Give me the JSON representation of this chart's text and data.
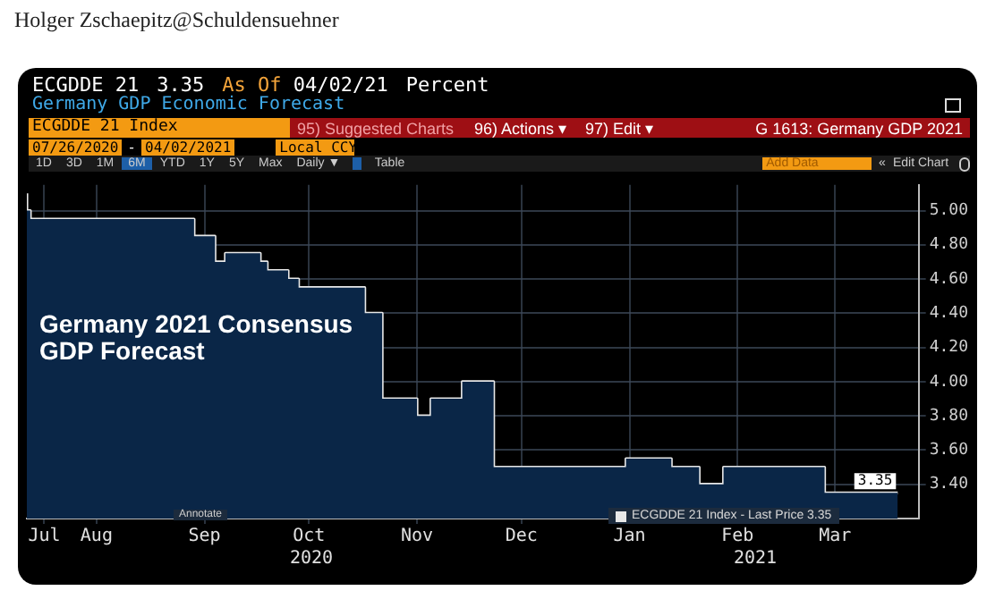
{
  "chart_data": {
    "type": "step",
    "title": "Germany 2021 Consensus GDP Forecast",
    "annotations": [
      "Holger Zschaepitz@Schuldensuehner",
      "ECGDDE 21",
      "3.35",
      "As Of",
      "04/02/21",
      "Percent",
      "Germany GDP Economic Forecast",
      "ECGDDE 21 Index",
      "95) Suggested Charts",
      "96) Actions ▾",
      "97) Edit ▾",
      "G 1613: Germany GDP 2021",
      "07/26/2020",
      "-",
      "04/02/2021",
      "Local CCY",
      "1D",
      "3D",
      "1M",
      "6M",
      "YTD",
      "1Y",
      "5Y",
      "Max",
      "Daily ▼",
      "Table",
      "Add Data",
      "«",
      "Edit Chart",
      "Annotate",
      "2020",
      "2021"
    ],
    "x": [
      "2020-07-26",
      "2020-07-27",
      "2020-09-12",
      "2020-09-18",
      "2020-09-21",
      "2020-10-01",
      "2020-10-03",
      "2020-10-09",
      "2020-10-12",
      "2020-10-31",
      "2020-11-05",
      "2020-11-15",
      "2020-11-19",
      "2020-11-28",
      "2020-12-07",
      "2021-01-14",
      "2021-01-27",
      "2021-02-04",
      "2021-02-11",
      "2021-03-12",
      "2021-03-25",
      "2021-04-02"
    ],
    "series": [
      {
        "type": "area",
        "color": "#0a2647",
        "values": [
          5.1,
          5.0,
          4.95,
          4.85,
          4.7,
          4.75,
          4.7,
          4.65,
          4.6,
          4.55,
          4.4,
          3.9,
          3.8,
          3.9,
          4.0,
          3.5,
          3.55,
          3.5,
          3.4,
          3.5,
          3.35,
          3.35
        ]
      },
      {
        "name": "ECGDDE 21 Index - Last Price 3.35",
        "color": "#e8e8e8",
        "values": [
          5.1,
          5.0,
          4.95,
          4.85,
          4.7,
          4.75,
          4.7,
          4.65,
          4.6,
          4.55,
          4.4,
          3.9,
          3.8,
          3.9,
          4.0,
          3.5,
          3.55,
          3.5,
          3.4,
          3.5,
          3.35,
          3.35
        ],
        "value_labels": [
          null,
          null,
          null,
          null,
          null,
          null,
          null,
          null,
          null,
          null,
          null,
          null,
          null,
          null,
          null,
          null,
          null,
          null,
          null,
          null,
          null,
          "3.35"
        ]
      }
    ],
    "xlim": [
      "2020-07-26",
      "2021-04-08"
    ],
    "xticks": [
      {
        "value": "2020-07-31",
        "label": "Jul"
      },
      {
        "value": "2020-08-15",
        "label": "Aug"
      },
      {
        "value": "2020-09-15",
        "label": "Sep"
      },
      {
        "value": "2020-10-15",
        "label": "Oct"
      },
      {
        "value": "2020-11-15",
        "label": "Nov"
      },
      {
        "value": "2020-12-15",
        "label": "Dec"
      },
      {
        "value": "2021-01-15",
        "label": "Jan"
      },
      {
        "value": "2021-02-15",
        "label": "Feb"
      },
      {
        "value": "2021-03-15",
        "label": "Mar"
      }
    ],
    "ylim": [
      3.2,
      5.15
    ],
    "yticks": [
      {
        "value": 3.4,
        "label": "3.40"
      },
      {
        "value": 3.6,
        "label": "3.60"
      },
      {
        "value": 3.8,
        "label": "3.80"
      },
      {
        "value": 4.0,
        "label": "4.00"
      },
      {
        "value": 4.2,
        "label": "4.20"
      },
      {
        "value": 4.4,
        "label": "4.40"
      },
      {
        "value": 4.6,
        "label": "4.60"
      },
      {
        "value": 4.8,
        "label": "4.80"
      },
      {
        "value": 5.0,
        "label": "5.00"
      }
    ],
    "grid": true,
    "legend": "bottom right",
    "marker": "none",
    "line_style": "solid"
  }
}
